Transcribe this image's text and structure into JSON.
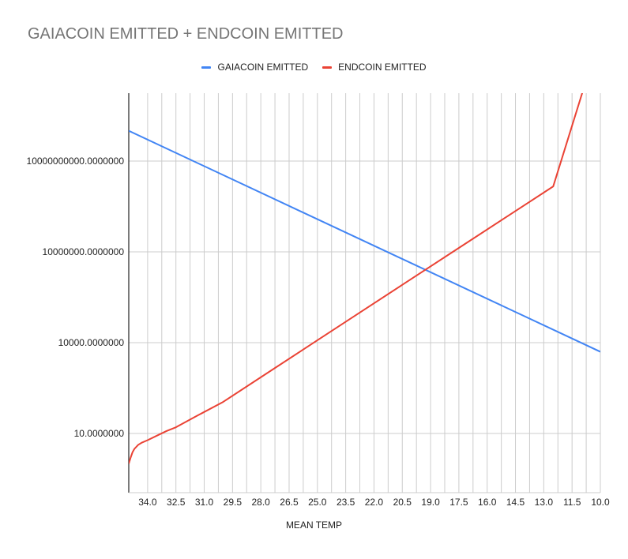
{
  "chart_data": {
    "type": "line",
    "title": "GAIACOIN EMITTED + ENDCOIN EMITTED",
    "xlabel": "MEAN TEMP",
    "ylabel": "",
    "y_scale": "log",
    "x_reversed": true,
    "xlim": [
      35.0,
      10.0
    ],
    "ylim": [
      1,
      100000000000000
    ],
    "x_ticks": [
      "34.0",
      "32.5",
      "31.0",
      "29.5",
      "28.0",
      "26.5",
      "25.0",
      "23.5",
      "22.0",
      "20.5",
      "19.0",
      "17.5",
      "16.0",
      "14.5",
      "13.0",
      "11.5",
      "10.0"
    ],
    "y_ticks": [
      {
        "value": 10,
        "label": "10.0000000"
      },
      {
        "value": 10000,
        "label": "10000.0000000"
      },
      {
        "value": 10000000,
        "label": "10000000.0000000"
      },
      {
        "value": 10000000000,
        "label": "10000000000.0000000"
      }
    ],
    "grid": true,
    "legend_position": "top",
    "series": [
      {
        "name": "GAIACOIN EMITTED",
        "color": "#4285F4",
        "x": [
          35.0,
          10.0
        ],
        "y": [
          100000000000,
          5000
        ]
      },
      {
        "name": "ENDCOIN EMITTED",
        "color": "#EA4335",
        "x": [
          35.0,
          34.9,
          34.8,
          34.7,
          34.5,
          34.3,
          34.0,
          33.5,
          33.0,
          32.5,
          31.5,
          30.0,
          27.5,
          25.0,
          22.5,
          20.0,
          17.5,
          15.0,
          12.5,
          10.0
        ],
        "y": [
          1,
          1.6,
          2.4,
          3.1,
          4.2,
          5.0,
          6.0,
          8.5,
          12,
          16,
          35,
          110,
          1150,
          12000,
          125000,
          1300000,
          13500000,
          140000000,
          1450000000,
          150000000000000
        ]
      }
    ]
  }
}
